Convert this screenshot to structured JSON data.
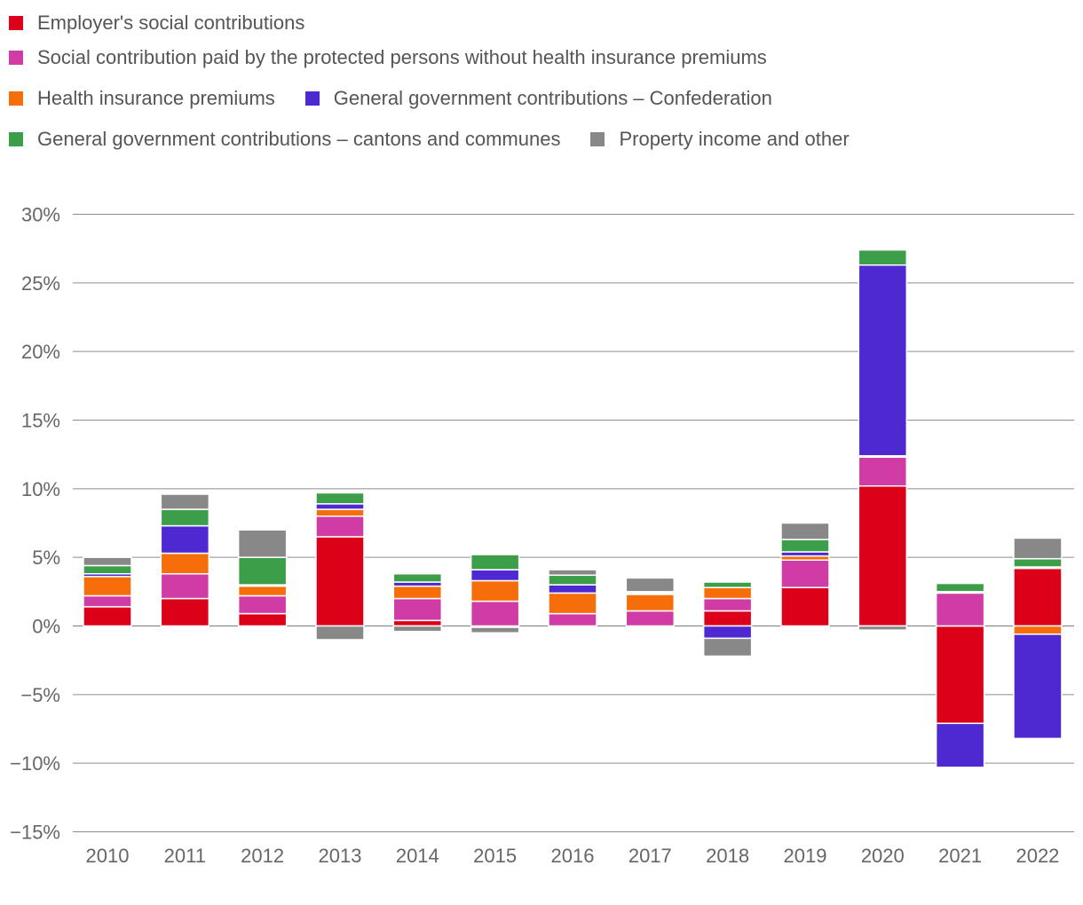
{
  "chart_data": {
    "type": "bar",
    "stacked": true,
    "title": "",
    "xlabel": "",
    "ylabel": "",
    "categories": [
      "2010",
      "2011",
      "2012",
      "2013",
      "2014",
      "2015",
      "2016",
      "2017",
      "2018",
      "2019",
      "2020",
      "2021",
      "2022"
    ],
    "ylim": [
      -15,
      30
    ],
    "yticks": [
      30,
      25,
      20,
      15,
      10,
      5,
      0,
      -5,
      -10,
      -15
    ],
    "ytick_labels": [
      "30%",
      "25%",
      "20%",
      "15%",
      "10%",
      "5%",
      "0%",
      "−5%",
      "−10%",
      "−15%"
    ],
    "grid": true,
    "legend_position": "top-left",
    "series": [
      {
        "key": "employer",
        "name": "Employer's social contributions",
        "color": "#dc0018",
        "values": [
          1.4,
          2.0,
          0.9,
          6.5,
          0.4,
          -0.1,
          0.0,
          0.0,
          1.1,
          2.8,
          10.2,
          -7.1,
          4.2
        ]
      },
      {
        "key": "protected",
        "name": "Social contribution paid by the protected persons without health insurance premiums",
        "color": "#d13ba6",
        "values": [
          0.8,
          1.8,
          1.3,
          1.5,
          1.6,
          1.8,
          0.9,
          1.1,
          0.9,
          2.0,
          2.1,
          2.4,
          0.1
        ]
      },
      {
        "key": "health",
        "name": "Health insurance premiums",
        "color": "#f56e0a",
        "values": [
          1.4,
          1.5,
          0.7,
          0.5,
          0.9,
          1.5,
          1.5,
          1.2,
          0.8,
          0.3,
          0.1,
          0.1,
          -0.6
        ]
      },
      {
        "key": "confed",
        "name": "General government contributions – Confederation",
        "color": "#4e28d0",
        "values": [
          0.2,
          2.0,
          0.1,
          0.4,
          0.3,
          0.8,
          0.6,
          0.1,
          -0.9,
          0.3,
          13.9,
          -3.2,
          -7.6
        ]
      },
      {
        "key": "cantons",
        "name": "General government contributions – cantons and communes",
        "color": "#3d9e4a",
        "values": [
          0.6,
          1.2,
          2.0,
          0.8,
          0.6,
          1.1,
          0.7,
          0.1,
          0.4,
          0.9,
          1.1,
          0.6,
          0.6
        ]
      },
      {
        "key": "property",
        "name": "Property income and other",
        "color": "#888888",
        "values": [
          0.6,
          1.1,
          2.0,
          -1.0,
          -0.4,
          -0.4,
          0.4,
          1.0,
          -1.3,
          1.2,
          -0.3,
          0.0,
          1.5
        ]
      }
    ]
  }
}
